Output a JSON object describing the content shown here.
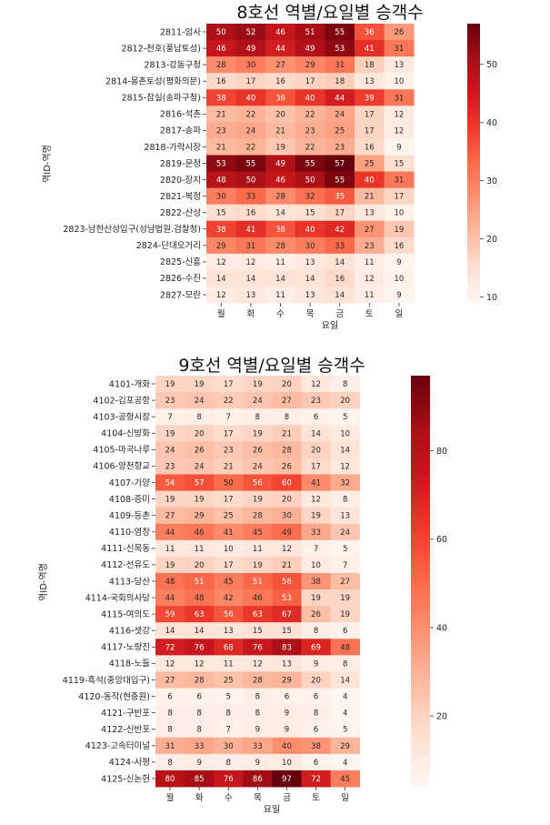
{
  "chart_data": [
    {
      "type": "heatmap",
      "title": "8호선 역별/요일별 승객수",
      "xlabel": "요일",
      "ylabel": "역ID-역명",
      "x": [
        "월",
        "화",
        "수",
        "목",
        "금",
        "토",
        "일"
      ],
      "y": [
        "2811-암사",
        "2812-천호(풍납토성)",
        "2813-강동구청",
        "2814-몽촌토성(평화의문)",
        "2815-잠실(송파구청)",
        "2816-석촌",
        "2817-송파",
        "2818-가락시장",
        "2819-문정",
        "2820-장지",
        "2821-복정",
        "2822-산성",
        "2823-남한산성입구(성남법원.검찰청)",
        "2824-단대오거리",
        "2825-신흥",
        "2826-수진",
        "2827-모란"
      ],
      "values": [
        [
          50,
          52,
          46,
          51,
          55,
          36,
          26
        ],
        [
          46,
          49,
          44,
          49,
          53,
          41,
          31
        ],
        [
          28,
          30,
          27,
          29,
          31,
          18,
          13
        ],
        [
          16,
          17,
          16,
          17,
          18,
          13,
          10
        ],
        [
          38,
          40,
          36,
          40,
          44,
          39,
          31
        ],
        [
          21,
          22,
          20,
          22,
          24,
          17,
          12
        ],
        [
          23,
          24,
          21,
          23,
          25,
          17,
          12
        ],
        [
          21,
          22,
          19,
          22,
          23,
          16,
          9
        ],
        [
          53,
          55,
          49,
          55,
          57,
          25,
          15
        ],
        [
          48,
          50,
          46,
          50,
          55,
          40,
          31
        ],
        [
          30,
          33,
          28,
          32,
          35,
          21,
          17
        ],
        [
          15,
          16,
          14,
          15,
          17,
          13,
          10
        ],
        [
          38,
          41,
          36,
          40,
          42,
          27,
          19
        ],
        [
          29,
          31,
          28,
          30,
          33,
          23,
          16
        ],
        [
          12,
          12,
          11,
          13,
          14,
          11,
          9
        ],
        [
          14,
          14,
          14,
          14,
          16,
          12,
          10
        ],
        [
          12,
          13,
          11,
          13,
          14,
          11,
          9
        ]
      ],
      "colorbar": {
        "range": [
          9,
          57
        ],
        "ticks": [
          10,
          20,
          30,
          40,
          50
        ]
      },
      "colormap": "Reds"
    },
    {
      "type": "heatmap",
      "title": "9호선 역별/요일별 승객수",
      "xlabel": "요일",
      "ylabel": "역ID-역명",
      "x": [
        "월",
        "화",
        "수",
        "목",
        "금",
        "토",
        "일"
      ],
      "y": [
        "4101-개화",
        "4102-김포공항",
        "4103-공항시장",
        "4104-신방화",
        "4105-마곡나루",
        "4106-양천향교",
        "4107-가양",
        "4108-증미",
        "4109-등촌",
        "4110-염창",
        "4111-신목동",
        "4112-선유도",
        "4113-당산",
        "4114-국회의사당",
        "4115-여의도",
        "4116-샛강",
        "4117-노량진",
        "4118-노들",
        "4119-흑석(중앙대입구)",
        "4120-동작(현충원)",
        "4121-구반포",
        "4122-신반포",
        "4123-고속터미널",
        "4124-사평",
        "4125-신논현"
      ],
      "values": [
        [
          19,
          19,
          17,
          19,
          20,
          12,
          8
        ],
        [
          23,
          24,
          22,
          24,
          27,
          23,
          20
        ],
        [
          7,
          8,
          7,
          8,
          8,
          6,
          5
        ],
        [
          19,
          20,
          17,
          19,
          21,
          14,
          10
        ],
        [
          24,
          26,
          23,
          26,
          28,
          20,
          14
        ],
        [
          23,
          24,
          21,
          24,
          26,
          17,
          12
        ],
        [
          54,
          57,
          50,
          56,
          60,
          41,
          32
        ],
        [
          19,
          19,
          17,
          19,
          20,
          12,
          8
        ],
        [
          27,
          29,
          25,
          28,
          30,
          19,
          13
        ],
        [
          44,
          46,
          41,
          45,
          49,
          33,
          24
        ],
        [
          11,
          11,
          10,
          11,
          12,
          7,
          5
        ],
        [
          19,
          20,
          17,
          19,
          21,
          10,
          7
        ],
        [
          48,
          51,
          45,
          51,
          56,
          38,
          27
        ],
        [
          44,
          48,
          42,
          46,
          53,
          19,
          19
        ],
        [
          59,
          63,
          56,
          63,
          67,
          26,
          19
        ],
        [
          14,
          14,
          13,
          15,
          15,
          8,
          6
        ],
        [
          72,
          76,
          68,
          76,
          83,
          69,
          48
        ],
        [
          12,
          12,
          11,
          12,
          13,
          9,
          8
        ],
        [
          27,
          28,
          25,
          28,
          29,
          20,
          14
        ],
        [
          6,
          6,
          5,
          8,
          6,
          6,
          4
        ],
        [
          8,
          8,
          8,
          8,
          9,
          8,
          4
        ],
        [
          8,
          8,
          7,
          9,
          9,
          6,
          5
        ],
        [
          31,
          33,
          30,
          33,
          40,
          38,
          29
        ],
        [
          8,
          9,
          8,
          9,
          10,
          6,
          4
        ],
        [
          80,
          85,
          76,
          86,
          97,
          72,
          45
        ]
      ],
      "colorbar": {
        "range": [
          4,
          97
        ],
        "ticks": [
          20,
          40,
          60,
          80
        ]
      },
      "colormap": "Reds"
    }
  ]
}
